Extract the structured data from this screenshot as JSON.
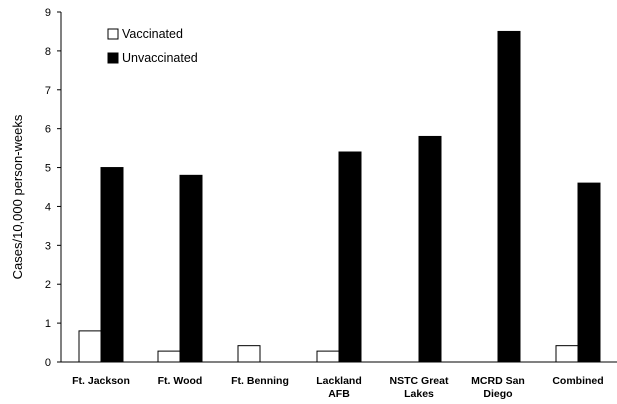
{
  "chart_data": {
    "type": "bar",
    "title": "",
    "xlabel": "",
    "ylabel": "Cases/10,000 person-weeks",
    "ylim": [
      0,
      9
    ],
    "yticks": [
      0,
      1,
      2,
      3,
      4,
      5,
      6,
      7,
      8,
      9
    ],
    "grid": false,
    "legend_position": "top-left",
    "categories": [
      [
        "Ft. Jackson"
      ],
      [
        "Ft. Wood"
      ],
      [
        "Ft. Benning"
      ],
      [
        "Lackland",
        "AFB"
      ],
      [
        "NSTC Great",
        "Lakes"
      ],
      [
        "MCRD San",
        "Diego"
      ],
      [
        "Combined"
      ]
    ],
    "series": [
      {
        "name": "Vaccinated",
        "color": "#ffffff",
        "values": [
          0.8,
          0.28,
          0.42,
          0.28,
          null,
          null,
          0.42
        ]
      },
      {
        "name": "Unvaccinated",
        "color": "#000000",
        "values": [
          5.0,
          4.8,
          null,
          5.4,
          5.8,
          8.5,
          4.6
        ]
      }
    ]
  }
}
